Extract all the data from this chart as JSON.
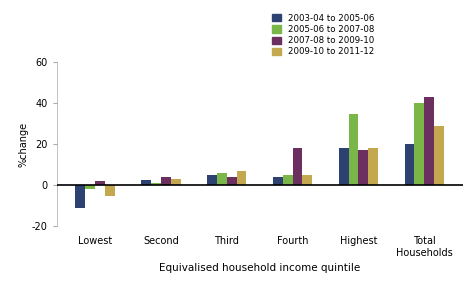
{
  "categories": [
    "Lowest",
    "Second",
    "Third",
    "Fourth",
    "Highest",
    "Total\nHouseholds"
  ],
  "series": {
    "2003-04 to 2005-06": [
      -11,
      2.5,
      5,
      4,
      18,
      20
    ],
    "2005-06 to 2007-08": [
      -2,
      1,
      6,
      5,
      35,
      40
    ],
    "2007-08 to 2009-10": [
      2,
      4,
      4,
      18,
      17,
      43
    ],
    "2009-10 to 2011-12": [
      -5,
      3,
      7,
      5,
      18,
      29
    ]
  },
  "colors": {
    "2003-04 to 2005-06": "#2E4272",
    "2005-06 to 2007-08": "#7AB648",
    "2007-08 to 2009-10": "#6B3060",
    "2009-10 to 2011-12": "#C4A84F"
  },
  "ylim": [
    -20,
    60
  ],
  "yticks": [
    -20,
    0,
    20,
    40,
    60
  ],
  "ylabel": "%change",
  "xlabel": "Equivalised household income quintile",
  "bar_width": 0.15,
  "background_color": "#ffffff"
}
